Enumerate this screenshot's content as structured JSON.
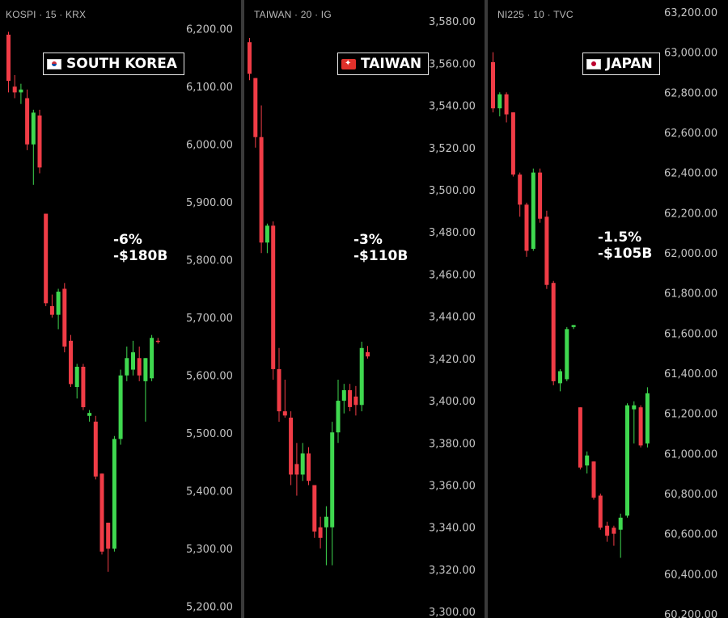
{
  "panels": [
    {
      "header": "KOSPI · 15 · KRX",
      "flag_icon": "south-korea-flag-icon",
      "tag_label": "SOUTH KOREA",
      "change_pct": "-6%",
      "change_value": "-$180B"
    },
    {
      "header": "TAIWAN · 20 · IG",
      "flag_icon": "taiwan-flag-icon",
      "tag_label": "TAIWAN",
      "change_pct": "-3%",
      "change_value": "-$110B"
    },
    {
      "header": "NI225 · 10 · TVC",
      "flag_icon": "japan-flag-icon",
      "tag_label": "JAPAN",
      "change_pct": "-1.5%",
      "change_value": "-$105B"
    }
  ],
  "colors": {
    "up": "#3fd84f",
    "down": "#f03c46",
    "background": "#000000",
    "separator": "#3a3a3a"
  },
  "chart_data": [
    {
      "type": "candlestick",
      "title": "KOSPI · 15 · KRX",
      "ylim": [
        5180,
        6250
      ],
      "yticks": [
        "6,200.00",
        "6,100.00",
        "6,000.00",
        "5,900.00",
        "5,800.00",
        "5,700.00",
        "5,600.00",
        "5,500.00",
        "5,400.00",
        "5,300.00",
        "5,200.00"
      ],
      "candles": [
        {
          "o": 6190,
          "h": 6195,
          "l": 6090,
          "c": 6110
        },
        {
          "o": 6100,
          "h": 6120,
          "l": 6080,
          "c": 6090
        },
        {
          "o": 6090,
          "h": 6105,
          "l": 6070,
          "c": 6095
        },
        {
          "o": 6080,
          "h": 6095,
          "l": 5990,
          "c": 6000
        },
        {
          "o": 6000,
          "h": 6060,
          "l": 5930,
          "c": 6055
        },
        {
          "o": 6050,
          "h": 6060,
          "l": 5950,
          "c": 5960
        },
        {
          "o": 5880,
          "h": 5880,
          "l": 5720,
          "c": 5725
        },
        {
          "o": 5720,
          "h": 5740,
          "l": 5700,
          "c": 5705
        },
        {
          "o": 5705,
          "h": 5750,
          "l": 5680,
          "c": 5745
        },
        {
          "o": 5750,
          "h": 5760,
          "l": 5640,
          "c": 5650
        },
        {
          "o": 5660,
          "h": 5670,
          "l": 5580,
          "c": 5585
        },
        {
          "o": 5580,
          "h": 5620,
          "l": 5560,
          "c": 5615
        },
        {
          "o": 5615,
          "h": 5620,
          "l": 5540,
          "c": 5545
        },
        {
          "o": 5530,
          "h": 5540,
          "l": 5520,
          "c": 5535
        },
        {
          "o": 5520,
          "h": 5530,
          "l": 5420,
          "c": 5425
        },
        {
          "o": 5430,
          "h": 5430,
          "l": 5290,
          "c": 5295
        },
        {
          "o": 5345,
          "h": 5345,
          "l": 5260,
          "c": 5300
        },
        {
          "o": 5300,
          "h": 5495,
          "l": 5295,
          "c": 5490
        },
        {
          "o": 5490,
          "h": 5610,
          "l": 5480,
          "c": 5600
        },
        {
          "o": 5600,
          "h": 5650,
          "l": 5590,
          "c": 5630
        },
        {
          "o": 5610,
          "h": 5660,
          "l": 5600,
          "c": 5640
        },
        {
          "o": 5630,
          "h": 5650,
          "l": 5590,
          "c": 5600
        },
        {
          "o": 5590,
          "h": 5630,
          "l": 5520,
          "c": 5630
        },
        {
          "o": 5595,
          "h": 5670,
          "l": 5590,
          "c": 5665
        },
        {
          "o": 5660,
          "h": 5665,
          "l": 5655,
          "c": 5658
        }
      ]
    },
    {
      "type": "candlestick",
      "title": "TAIWAN · 20 · IG",
      "ylim": [
        3297,
        3590
      ],
      "yticks": [
        "3,580.00",
        "3,560.00",
        "3,540.00",
        "3,520.00",
        "3,500.00",
        "3,480.00",
        "3,460.00",
        "3,440.00",
        "3,420.00",
        "3,400.00",
        "3,380.00",
        "3,360.00",
        "3,340.00",
        "3,320.00",
        "3,300.00"
      ],
      "candles": [
        {
          "o": 3570,
          "h": 3572,
          "l": 3552,
          "c": 3555
        },
        {
          "o": 3553,
          "h": 3553,
          "l": 3520,
          "c": 3525
        },
        {
          "o": 3525,
          "h": 3540,
          "l": 3470,
          "c": 3475
        },
        {
          "o": 3475,
          "h": 3484,
          "l": 3470,
          "c": 3483
        },
        {
          "o": 3483,
          "h": 3485,
          "l": 3410,
          "c": 3415
        },
        {
          "o": 3415,
          "h": 3425,
          "l": 3390,
          "c": 3395
        },
        {
          "o": 3395,
          "h": 3410,
          "l": 3392,
          "c": 3393
        },
        {
          "o": 3392,
          "h": 3395,
          "l": 3360,
          "c": 3365
        },
        {
          "o": 3370,
          "h": 3380,
          "l": 3355,
          "c": 3365
        },
        {
          "o": 3365,
          "h": 3380,
          "l": 3362,
          "c": 3375
        },
        {
          "o": 3375,
          "h": 3378,
          "l": 3360,
          "c": 3362
        },
        {
          "o": 3360,
          "h": 3360,
          "l": 3335,
          "c": 3338
        },
        {
          "o": 3340,
          "h": 3345,
          "l": 3330,
          "c": 3335
        },
        {
          "o": 3340,
          "h": 3350,
          "l": 3322,
          "c": 3345
        },
        {
          "o": 3340,
          "h": 3390,
          "l": 3322,
          "c": 3385
        },
        {
          "o": 3385,
          "h": 3410,
          "l": 3380,
          "c": 3400
        },
        {
          "o": 3400,
          "h": 3408,
          "l": 3394,
          "c": 3405
        },
        {
          "o": 3405,
          "h": 3408,
          "l": 3395,
          "c": 3397
        },
        {
          "o": 3402,
          "h": 3407,
          "l": 3393,
          "c": 3398
        },
        {
          "o": 3398,
          "h": 3428,
          "l": 3395,
          "c": 3425
        },
        {
          "o": 3423,
          "h": 3426,
          "l": 3420,
          "c": 3421
        }
      ]
    },
    {
      "type": "candlestick",
      "title": "NI225 · 10 · TVC",
      "ylim": [
        60180,
        63260
      ],
      "yticks": [
        "63,200.00",
        "63,000.00",
        "62,800.00",
        "62,600.00",
        "62,400.00",
        "62,200.00",
        "62,000.00",
        "61,800.00",
        "61,600.00",
        "61,400.00",
        "61,200.00",
        "61,000.00",
        "60,800.00",
        "60,600.00",
        "60,400.00",
        "60,200.00"
      ],
      "candles": [
        {
          "o": 62950,
          "h": 63000,
          "l": 62700,
          "c": 62720
        },
        {
          "o": 62720,
          "h": 62800,
          "l": 62680,
          "c": 62790
        },
        {
          "o": 62790,
          "h": 62800,
          "l": 62650,
          "c": 62690
        },
        {
          "o": 62700,
          "h": 62700,
          "l": 62380,
          "c": 62390
        },
        {
          "o": 62390,
          "h": 62400,
          "l": 62180,
          "c": 62240
        },
        {
          "o": 62240,
          "h": 62250,
          "l": 61980,
          "c": 62010
        },
        {
          "o": 62020,
          "h": 62420,
          "l": 62010,
          "c": 62400
        },
        {
          "o": 62400,
          "h": 62420,
          "l": 62150,
          "c": 62170
        },
        {
          "o": 62180,
          "h": 62210,
          "l": 61820,
          "c": 61840
        },
        {
          "o": 61850,
          "h": 61860,
          "l": 61340,
          "c": 61360
        },
        {
          "o": 61350,
          "h": 61420,
          "l": 61310,
          "c": 61410
        },
        {
          "o": 61370,
          "h": 61630,
          "l": 61360,
          "c": 61620
        },
        {
          "o": 61630,
          "h": 61640,
          "l": 61620,
          "c": 61640
        },
        {
          "o": 61230,
          "h": 61230,
          "l": 60920,
          "c": 60930
        },
        {
          "o": 60940,
          "h": 61010,
          "l": 60900,
          "c": 60990
        },
        {
          "o": 60960,
          "h": 60960,
          "l": 60770,
          "c": 60780
        },
        {
          "o": 60790,
          "h": 60800,
          "l": 60620,
          "c": 60630
        },
        {
          "o": 60640,
          "h": 60660,
          "l": 60560,
          "c": 60590
        },
        {
          "o": 60630,
          "h": 60640,
          "l": 60540,
          "c": 60600
        },
        {
          "o": 60620,
          "h": 60700,
          "l": 60480,
          "c": 60680
        },
        {
          "o": 60690,
          "h": 61250,
          "l": 60680,
          "c": 61240
        },
        {
          "o": 61220,
          "h": 61260,
          "l": 61050,
          "c": 61240
        },
        {
          "o": 61230,
          "h": 61240,
          "l": 61030,
          "c": 61040
        },
        {
          "o": 61050,
          "h": 61330,
          "l": 61030,
          "c": 61300
        }
      ]
    }
  ]
}
